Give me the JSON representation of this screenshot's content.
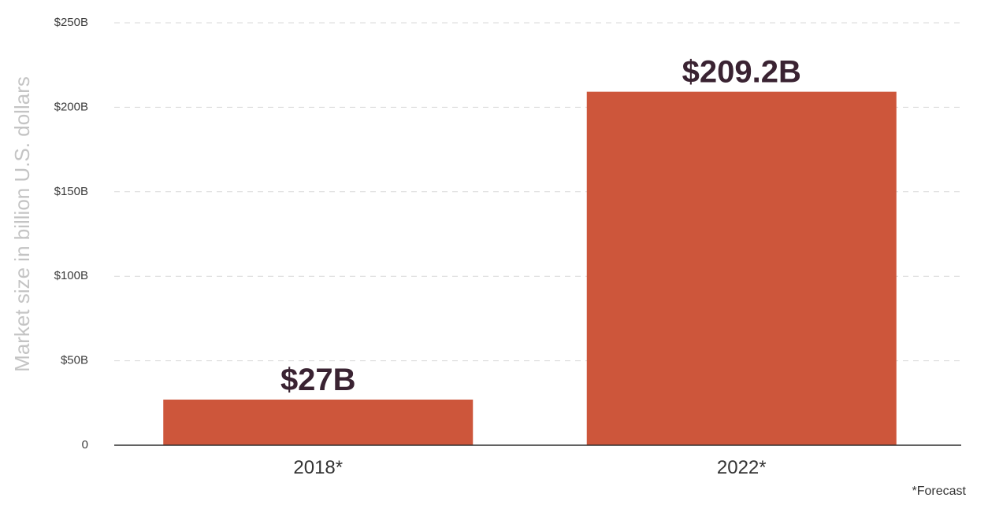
{
  "chart_data": {
    "type": "bar",
    "categories": [
      "2018*",
      "2022*"
    ],
    "values": [
      27,
      209.2
    ],
    "value_labels": [
      "$27B",
      "$209.2B"
    ],
    "ylabel": "Market size in billion U.S. dollars",
    "xlabel": "",
    "ylim": [
      0,
      250
    ],
    "y_ticks": [
      0,
      50,
      100,
      150,
      200,
      250
    ],
    "y_tick_labels": [
      "0",
      "$50B",
      "$100B",
      "$150B",
      "$200B",
      "$250B"
    ],
    "grid": true,
    "footnote": "*Forecast",
    "bar_color": "#cd563b",
    "value_label_color": "#3a2332"
  }
}
